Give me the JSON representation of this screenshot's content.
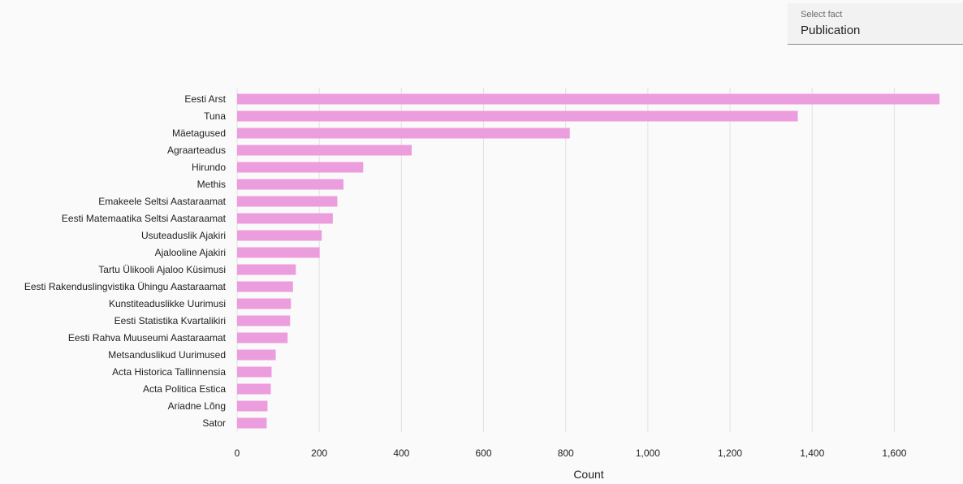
{
  "select_fact": {
    "label": "Select fact",
    "value": "Publication"
  },
  "colors": {
    "bar": "#ec9ddd",
    "grid": "#e2e2e2",
    "text": "#222222"
  },
  "chart_data": {
    "type": "bar",
    "orientation": "horizontal",
    "xlabel": "Count",
    "ylabel": "",
    "xlim": [
      0,
      1700
    ],
    "xticks": [
      0,
      200,
      400,
      600,
      800,
      1000,
      1200,
      1400,
      1600
    ],
    "xtick_labels": [
      "0",
      "200",
      "400",
      "600",
      "800",
      "1,000",
      "1,200",
      "1,400",
      "1,600"
    ],
    "grid": true,
    "categories": [
      "Eesti Arst",
      "Tuna",
      "Mäetagused",
      "Agraarteadus",
      "Hirundo",
      "Methis",
      "Emakeele Seltsi Aastaraamat",
      "Eesti Matemaatika Seltsi Aastaraamat",
      "Usuteaduslik Ajakiri",
      "Ajalooline Ajakiri",
      "Tartu Ülikooli Ajaloo Küsimusi",
      "Eesti Rakenduslingvistika Ühingu Aastaraamat",
      "Kunstiteaduslikke Uurimusi",
      "Eesti Statistika Kvartalikiri",
      "Eesti Rahva Muuseumi Aastaraamat",
      "Metsanduslikud Uurimused",
      "Acta Historica Tallinnensia",
      "Acta Politica Estica",
      "Ariadne Lõng",
      "Sator"
    ],
    "values": [
      1710,
      1365,
      810,
      425,
      307,
      259,
      244,
      233,
      206,
      201,
      143,
      136,
      131,
      129,
      123,
      94,
      84,
      82,
      74,
      72
    ]
  }
}
